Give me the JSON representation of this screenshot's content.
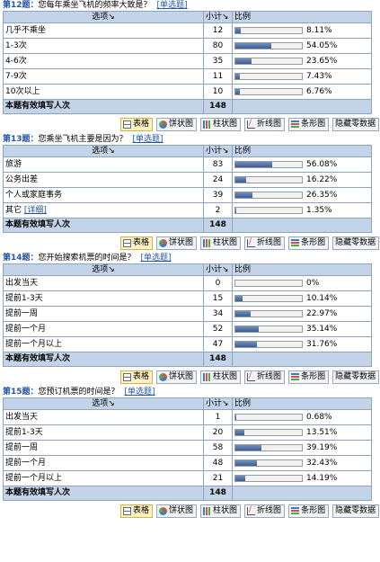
{
  "questions": [
    {
      "num": "第12题：",
      "title": "您每年乘坐飞机的频率大致是？",
      "type": "[单选题]",
      "col_option": "选项",
      "col_count": "小计",
      "col_percent": "比例",
      "rows": [
        {
          "label": "几乎不乘坐",
          "count": "12",
          "percent": "8.11%",
          "ratio": 8.11
        },
        {
          "label": "1-3次",
          "count": "80",
          "percent": "54.05%",
          "ratio": 54.05
        },
        {
          "label": "4-6次",
          "count": "35",
          "percent": "23.65%",
          "ratio": 23.65
        },
        {
          "label": "7-9次",
          "count": "11",
          "percent": "7.43%",
          "ratio": 7.43
        },
        {
          "label": "10次以上",
          "count": "10",
          "percent": "6.76%",
          "ratio": 6.76
        }
      ],
      "total_label": "本题有效填写人次",
      "total": "148"
    },
    {
      "num": "第13题：",
      "title": "您乘坐飞机主要是因为？",
      "type": "[单选题]",
      "col_option": "选项",
      "col_count": "小计",
      "col_percent": "比例",
      "rows": [
        {
          "label": "旅游",
          "count": "83",
          "percent": "56.08%",
          "ratio": 56.08
        },
        {
          "label": "公务出差",
          "count": "24",
          "percent": "16.22%",
          "ratio": 16.22
        },
        {
          "label": "个人或家庭事务",
          "count": "39",
          "percent": "26.35%",
          "ratio": 26.35
        },
        {
          "label": "其它",
          "link": "[详细]",
          "count": "2",
          "percent": "1.35%",
          "ratio": 1.35
        }
      ],
      "total_label": "本题有效填写人次",
      "total": "148"
    },
    {
      "num": "第14题：",
      "title": "您开始搜索机票的时间是？",
      "type": "[单选题]",
      "col_option": "选项",
      "col_count": "小计",
      "col_percent": "比例",
      "rows": [
        {
          "label": "出发当天",
          "count": "0",
          "percent": "0%",
          "ratio": 0
        },
        {
          "label": "提前1-3天",
          "count": "15",
          "percent": "10.14%",
          "ratio": 10.14
        },
        {
          "label": "提前一周",
          "count": "34",
          "percent": "22.97%",
          "ratio": 22.97
        },
        {
          "label": "提前一个月",
          "count": "52",
          "percent": "35.14%",
          "ratio": 35.14
        },
        {
          "label": "提前一个月以上",
          "count": "47",
          "percent": "31.76%",
          "ratio": 31.76
        }
      ],
      "total_label": "本题有效填写人次",
      "total": "148"
    },
    {
      "num": "第15题：",
      "title": "您预订机票的时间是？",
      "type": "[单选题]",
      "col_option": "选项",
      "col_count": "小计",
      "col_percent": "比例",
      "rows": [
        {
          "label": "出发当天",
          "count": "1",
          "percent": "0.68%",
          "ratio": 0.68
        },
        {
          "label": "提前1-3天",
          "count": "20",
          "percent": "13.51%",
          "ratio": 13.51
        },
        {
          "label": "提前一周",
          "count": "58",
          "percent": "39.19%",
          "ratio": 39.19
        },
        {
          "label": "提前一个月",
          "count": "48",
          "percent": "32.43%",
          "ratio": 32.43
        },
        {
          "label": "提前一个月以上",
          "count": "21",
          "percent": "14.19%",
          "ratio": 14.19
        }
      ],
      "total_label": "本题有效填写人次",
      "total": "148"
    }
  ],
  "toolbar": {
    "buttons": [
      {
        "label": "表格",
        "icon": "table-icon",
        "active": true
      },
      {
        "label": "饼状图",
        "icon": "pie-chart-icon"
      },
      {
        "label": "柱状图",
        "icon": "column-chart-icon"
      },
      {
        "label": "折线图",
        "icon": "line-chart-icon"
      },
      {
        "label": "条形图",
        "icon": "bar-chart-icon"
      },
      {
        "label": "隐藏零数据"
      }
    ]
  },
  "colors": {
    "accent": "#2255aa",
    "header_bg": "#c4d4e8",
    "border": "#8da4c3",
    "bar_fill": "#3a5d99"
  }
}
